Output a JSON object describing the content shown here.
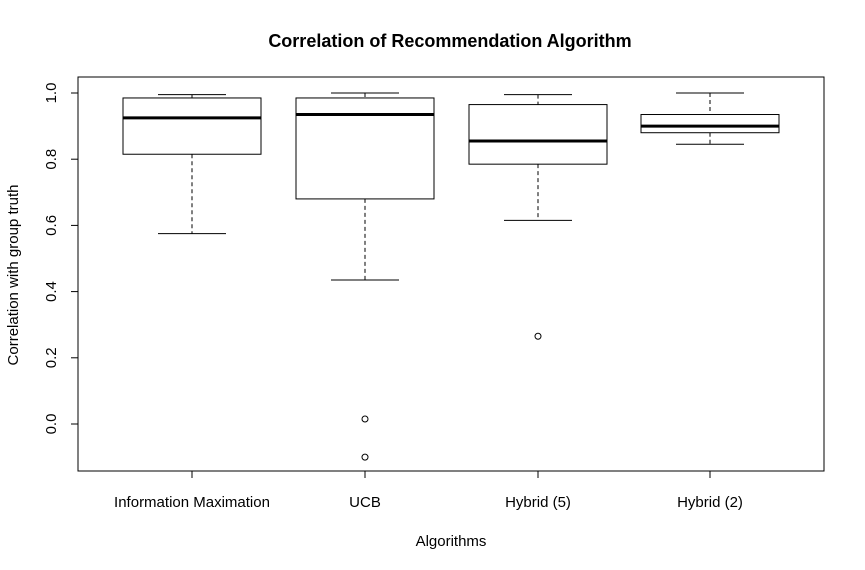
{
  "chart_data": {
    "type": "boxplot",
    "title": "Correlation of Recommendation Algorithm",
    "xlabel": "Algorithms",
    "ylabel": "Correlation with group truth",
    "ylim": [
      -0.14,
      1.05
    ],
    "yticks": [
      "0.0",
      "0.2",
      "0.4",
      "0.6",
      "0.8",
      "1.0"
    ],
    "categories": [
      "Information Maximation",
      "UCB",
      "Hybrid (5)",
      "Hybrid (2)"
    ],
    "boxes": [
      {
        "category": "Information Maximation",
        "whisker_low": 0.575,
        "q1": 0.815,
        "median": 0.925,
        "q3": 0.985,
        "whisker_high": 0.995,
        "outliers": []
      },
      {
        "category": "UCB",
        "whisker_low": 0.435,
        "q1": 0.68,
        "median": 0.935,
        "q3": 0.985,
        "whisker_high": 1.0,
        "outliers": [
          0.015,
          -0.1
        ]
      },
      {
        "category": "Hybrid (5)",
        "whisker_low": 0.615,
        "q1": 0.785,
        "median": 0.855,
        "q3": 0.965,
        "whisker_high": 0.995,
        "outliers": [
          0.265
        ]
      },
      {
        "category": "Hybrid (2)",
        "whisker_low": 0.845,
        "q1": 0.88,
        "median": 0.9,
        "q3": 0.935,
        "whisker_high": 1.0,
        "outliers": []
      }
    ],
    "grid": false,
    "legend": "none"
  }
}
